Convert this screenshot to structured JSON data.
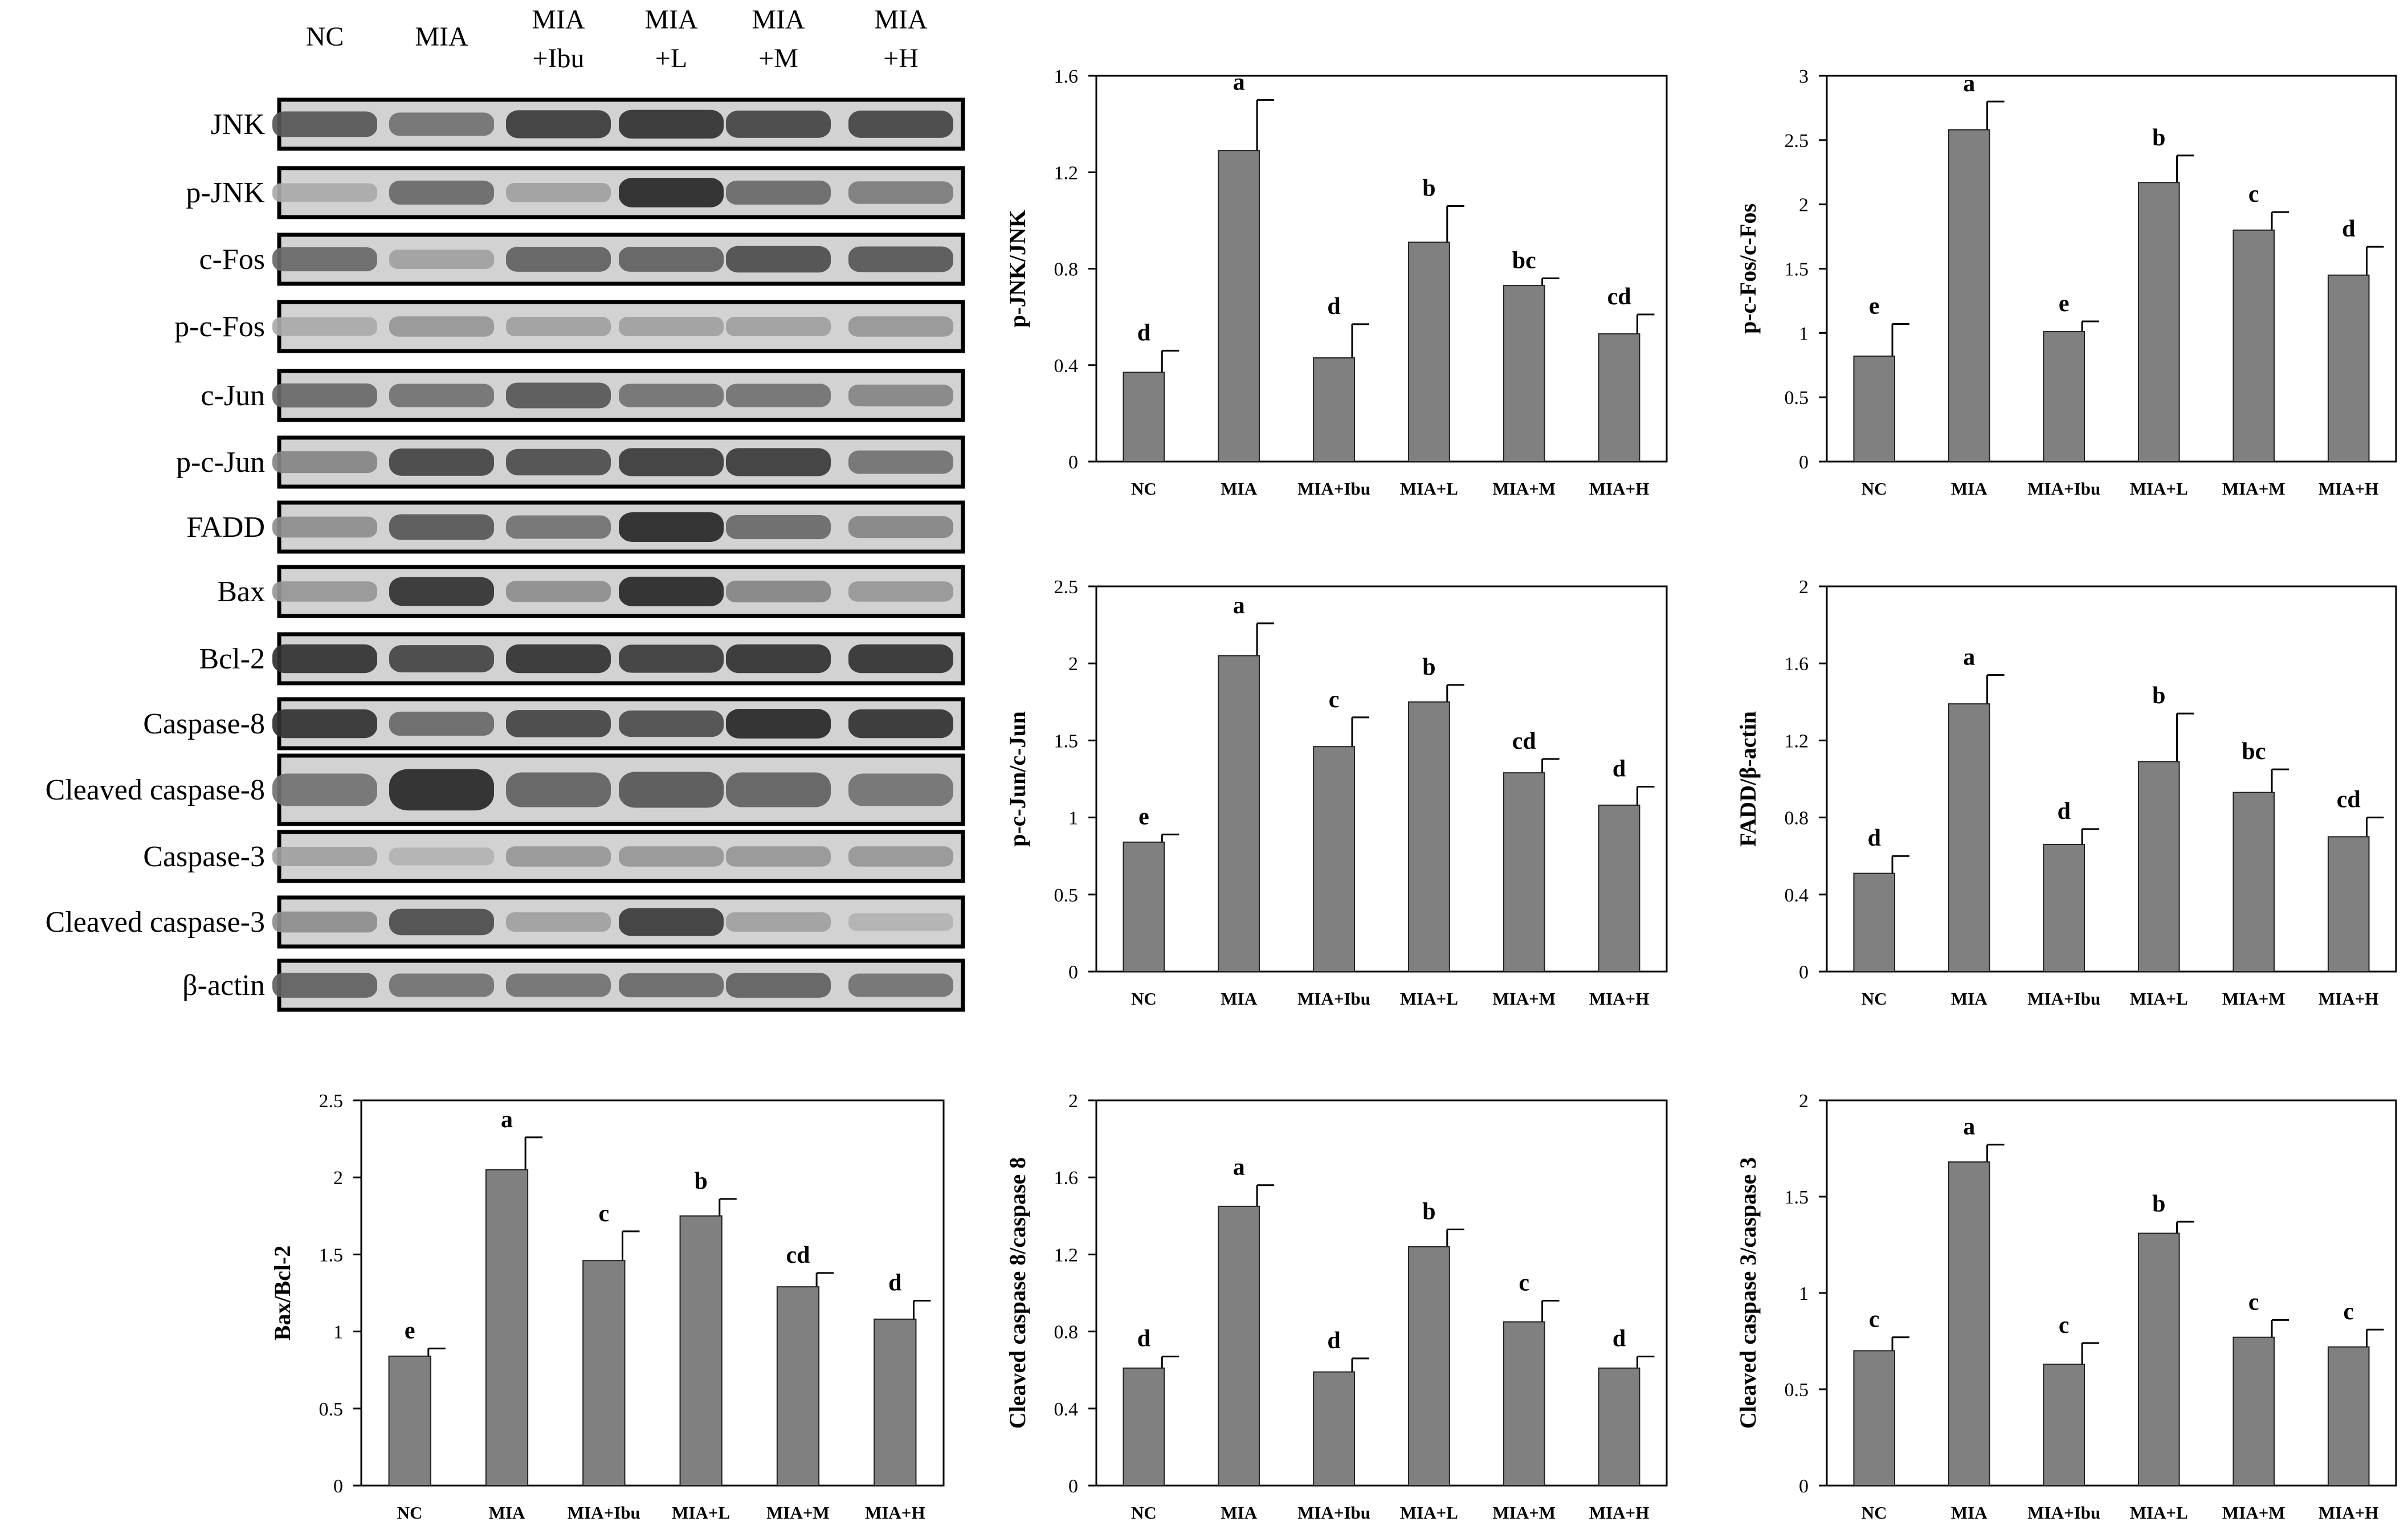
{
  "blot": {
    "lane_headers": [
      [
        "NC"
      ],
      [
        "MIA"
      ],
      [
        "MIA",
        "+Ibu"
      ],
      [
        "MIA",
        "+L"
      ],
      [
        "MIA",
        "+M"
      ],
      [
        "MIA",
        "+H"
      ]
    ],
    "row_labels": [
      "JNK",
      "p-JNK",
      "c-Fos",
      "p-c-Fos",
      "c-Jun",
      "p-c-Jun",
      "FADD",
      "Bax",
      "Bcl-2",
      "Caspase-8",
      "Cleaved caspase-8",
      "Caspase-3",
      "Cleaved caspase-3",
      "β-actin"
    ],
    "band_intensity": [
      [
        0.7,
        0.55,
        0.85,
        0.9,
        0.8,
        0.8
      ],
      [
        0.25,
        0.6,
        0.3,
        0.95,
        0.6,
        0.5
      ],
      [
        0.6,
        0.3,
        0.65,
        0.65,
        0.75,
        0.7
      ],
      [
        0.25,
        0.35,
        0.3,
        0.3,
        0.3,
        0.35
      ],
      [
        0.6,
        0.55,
        0.7,
        0.55,
        0.55,
        0.45
      ],
      [
        0.45,
        0.8,
        0.75,
        0.85,
        0.85,
        0.55
      ],
      [
        0.4,
        0.7,
        0.55,
        0.95,
        0.6,
        0.45
      ],
      [
        0.35,
        0.9,
        0.4,
        0.95,
        0.45,
        0.35
      ],
      [
        0.9,
        0.8,
        0.9,
        0.85,
        0.9,
        0.9
      ],
      [
        0.9,
        0.6,
        0.8,
        0.75,
        0.95,
        0.9
      ],
      [
        0.55,
        0.95,
        0.65,
        0.7,
        0.65,
        0.55
      ],
      [
        0.3,
        0.2,
        0.35,
        0.35,
        0.35,
        0.35
      ],
      [
        0.4,
        0.75,
        0.3,
        0.85,
        0.3,
        0.2
      ],
      [
        0.65,
        0.55,
        0.55,
        0.6,
        0.65,
        0.55
      ]
    ]
  },
  "chart_data": [
    {
      "type": "bar",
      "categories": [
        "NC",
        "MIA",
        "MIA+Ibu",
        "MIA+L",
        "MIA+M",
        "MIA+H"
      ],
      "values": [
        0.37,
        1.29,
        0.43,
        0.91,
        0.73,
        0.53
      ],
      "errors": [
        0.09,
        0.21,
        0.14,
        0.15,
        0.03,
        0.08
      ],
      "letters": [
        "d",
        "a",
        "d",
        "b",
        "bc",
        "cd"
      ],
      "ylabel": "p-JNK/JNK",
      "ylim": [
        0,
        1.6
      ],
      "yticks": [
        0,
        0.4,
        0.8,
        1.2,
        1.6
      ],
      "ytick_labels": [
        "0",
        "0.4",
        "0.8",
        "1.2",
        "1.6"
      ],
      "bar_color": "#808080"
    },
    {
      "type": "bar",
      "categories": [
        "NC",
        "MIA",
        "MIA+Ibu",
        "MIA+L",
        "MIA+M",
        "MIA+H"
      ],
      "values": [
        0.82,
        2.58,
        1.01,
        2.17,
        1.8,
        1.45
      ],
      "errors": [
        0.25,
        0.22,
        0.08,
        0.21,
        0.14,
        0.22
      ],
      "letters": [
        "e",
        "a",
        "e",
        "b",
        "c",
        "d"
      ],
      "ylabel": "p-c-Fos/c-Fos",
      "ylim": [
        0,
        3
      ],
      "yticks": [
        0,
        0.5,
        1,
        1.5,
        2,
        2.5,
        3
      ],
      "ytick_labels": [
        "0",
        "0.5",
        "1",
        "1.5",
        "2",
        "2.5",
        "3"
      ],
      "bar_color": "#808080"
    },
    {
      "type": "bar",
      "categories": [
        "NC",
        "MIA",
        "MIA+Ibu",
        "MIA+L",
        "MIA+M",
        "MIA+H"
      ],
      "values": [
        0.84,
        2.05,
        1.46,
        1.75,
        1.29,
        1.08
      ],
      "errors": [
        0.05,
        0.21,
        0.19,
        0.11,
        0.09,
        0.12
      ],
      "letters": [
        "e",
        "a",
        "c",
        "b",
        "cd",
        "d"
      ],
      "ylabel": "p-c-Jun/c-Jun",
      "ylim": [
        0,
        2.5
      ],
      "yticks": [
        0,
        0.5,
        1,
        1.5,
        2,
        2.5
      ],
      "ytick_labels": [
        "0",
        "0.5",
        "1",
        "1.5",
        "2",
        "2.5"
      ],
      "bar_color": "#808080"
    },
    {
      "type": "bar",
      "categories": [
        "NC",
        "MIA",
        "MIA+Ibu",
        "MIA+L",
        "MIA+M",
        "MIA+H"
      ],
      "values": [
        0.51,
        1.39,
        0.66,
        1.09,
        0.93,
        0.7
      ],
      "errors": [
        0.09,
        0.15,
        0.08,
        0.25,
        0.12,
        0.1
      ],
      "letters": [
        "d",
        "a",
        "d",
        "b",
        "bc",
        "cd"
      ],
      "ylabel": "FADD/β-actin",
      "ylim": [
        0,
        2
      ],
      "yticks": [
        0,
        0.4,
        0.8,
        1.2,
        1.6,
        2
      ],
      "ytick_labels": [
        "0",
        "0.4",
        "0.8",
        "1.2",
        "1.6",
        "2"
      ],
      "bar_color": "#808080"
    },
    {
      "type": "bar",
      "categories": [
        "NC",
        "MIA",
        "MIA+Ibu",
        "MIA+L",
        "MIA+M",
        "MIA+H"
      ],
      "values": [
        0.84,
        2.05,
        1.46,
        1.75,
        1.29,
        1.08
      ],
      "errors": [
        0.05,
        0.21,
        0.19,
        0.11,
        0.09,
        0.12
      ],
      "letters": [
        "e",
        "a",
        "c",
        "b",
        "cd",
        "d"
      ],
      "ylabel": "Bax/Bcl-2",
      "ylim": [
        0,
        2.5
      ],
      "yticks": [
        0,
        0.5,
        1,
        1.5,
        2,
        2.5
      ],
      "ytick_labels": [
        "0",
        "0.5",
        "1",
        "1.5",
        "2",
        "2.5"
      ],
      "bar_color": "#808080"
    },
    {
      "type": "bar",
      "categories": [
        "NC",
        "MIA",
        "MIA+Ibu",
        "MIA+L",
        "MIA+M",
        "MIA+H"
      ],
      "values": [
        0.61,
        1.45,
        0.59,
        1.24,
        0.85,
        0.61
      ],
      "errors": [
        0.06,
        0.11,
        0.07,
        0.09,
        0.11,
        0.06
      ],
      "letters": [
        "d",
        "a",
        "d",
        "b",
        "c",
        "d"
      ],
      "ylabel": "Cleaved caspase 8/caspase 8",
      "ylim": [
        0,
        2
      ],
      "yticks": [
        0,
        0.4,
        0.8,
        1.2,
        1.6,
        2
      ],
      "ytick_labels": [
        "0",
        "0.4",
        "0.8",
        "1.2",
        "1.6",
        "2"
      ],
      "bar_color": "#808080"
    },
    {
      "type": "bar",
      "categories": [
        "NC",
        "MIA",
        "MIA+Ibu",
        "MIA+L",
        "MIA+M",
        "MIA+H"
      ],
      "values": [
        0.7,
        1.68,
        0.63,
        1.31,
        0.77,
        0.72
      ],
      "errors": [
        0.07,
        0.09,
        0.11,
        0.06,
        0.09,
        0.09
      ],
      "letters": [
        "c",
        "a",
        "c",
        "b",
        "c",
        "c"
      ],
      "ylabel": "Cleaved caspase 3/caspase 3",
      "ylim": [
        0,
        2
      ],
      "yticks": [
        0,
        0.5,
        1,
        1.5,
        2
      ],
      "ytick_labels": [
        "0",
        "0.5",
        "1",
        "1.5",
        "2"
      ],
      "bar_color": "#808080"
    }
  ]
}
